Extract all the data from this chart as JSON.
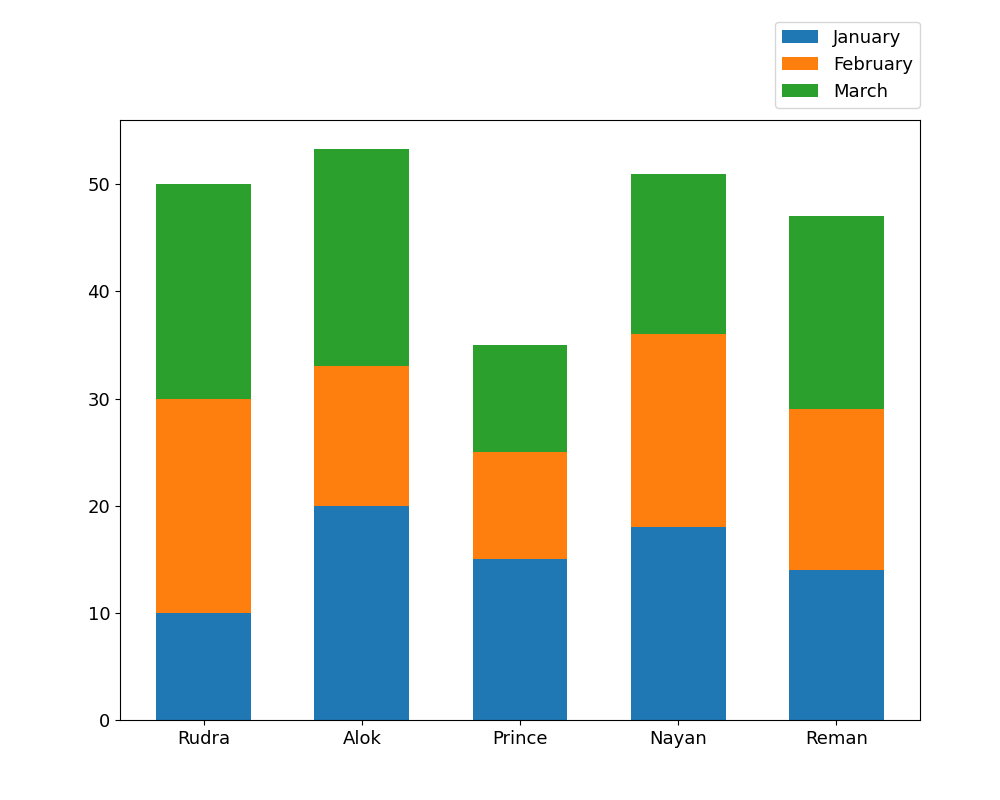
{
  "categories": [
    "Rudra",
    "Alok",
    "Prince",
    "Nayan",
    "Reman"
  ],
  "january": [
    10,
    20,
    15,
    18,
    14
  ],
  "february": [
    20,
    13,
    10,
    18,
    15
  ],
  "march": [
    20,
    20.3,
    10,
    15,
    18
  ],
  "colors": {
    "january": "#1f77b4",
    "february": "#ff7f0e",
    "march": "#2ca02c"
  },
  "legend_labels": [
    "January",
    "February",
    "March"
  ],
  "ylim": [
    0,
    56
  ],
  "figsize": [
    10,
    8
  ],
  "dpi": 100,
  "bar_width": 0.6,
  "tick_fontsize": 13,
  "legend_fontsize": 13
}
